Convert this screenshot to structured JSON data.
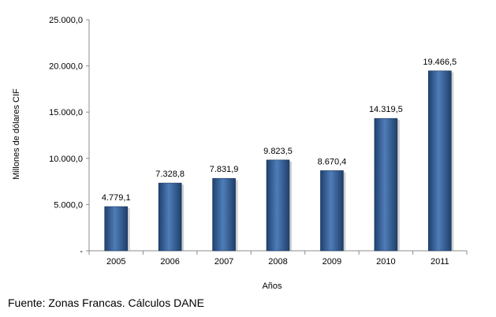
{
  "chart_data": {
    "type": "bar",
    "categories": [
      "2005",
      "2006",
      "2007",
      "2008",
      "2009",
      "2010",
      "2011"
    ],
    "values": [
      4779.1,
      7328.8,
      7831.9,
      9823.5,
      8670.4,
      14319.5,
      19466.5
    ],
    "data_labels": [
      "4.779,1",
      "7.328,8",
      "7.831,9",
      "9.823,5",
      "8.670,4",
      "14.319,5",
      "19.466,5"
    ],
    "xlabel": "Años",
    "ylabel": "Millones de dólares CIF",
    "ylim": [
      0,
      25000
    ],
    "y_ticks": [
      0,
      5000,
      10000,
      15000,
      20000,
      25000
    ],
    "y_tick_labels": [
      "-",
      "5.000,0",
      "10.000,0",
      "15.000,0",
      "20.000,0",
      "25.000,0"
    ],
    "grid": false,
    "legend": "none",
    "bar_color": "#2E5B94"
  },
  "source_note": "Fuente: Zonas Francas. Cálculos DANE"
}
